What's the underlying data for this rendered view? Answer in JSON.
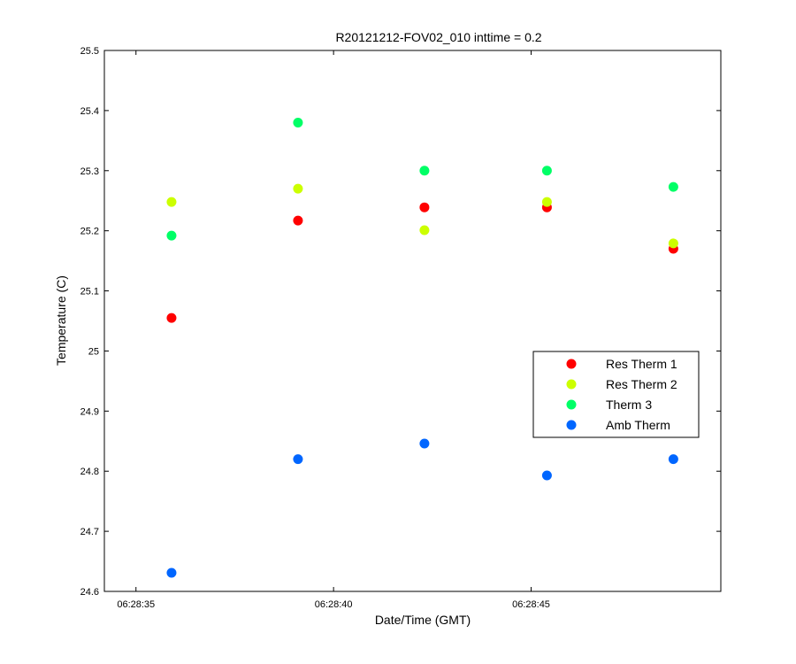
{
  "chart_data": {
    "type": "scatter",
    "title": "R20121212-FOV02_010 inttime = 0.2",
    "xlabel": "Date/Time (GMT)",
    "ylabel": "Temperature (C)",
    "x_axis": {
      "type": "time",
      "range": [
        "06:28:34.2",
        "06:28:49.8"
      ],
      "ticks": [
        "06:28:35",
        "06:28:40",
        "06:28:45"
      ]
    },
    "ylim": [
      24.6,
      25.5
    ],
    "yticks": [
      "24.6",
      "24.7",
      "24.8",
      "24.9",
      "25",
      "25.1",
      "25.2",
      "25.3",
      "25.4",
      "25.5"
    ],
    "x": [
      "06:28:35.9",
      "06:28:39.1",
      "06:28:42.3",
      "06:28:45.4",
      "06:28:48.6"
    ],
    "series": [
      {
        "name": "Res Therm 1",
        "color": "#ff0000",
        "values": [
          25.055,
          25.217,
          25.239,
          25.239,
          25.17
        ]
      },
      {
        "name": "Res Therm 2",
        "color": "#ccff00",
        "values": [
          25.248,
          25.27,
          25.201,
          25.248,
          25.179
        ]
      },
      {
        "name": "Therm 3",
        "color": "#00ff66",
        "values": [
          25.192,
          25.38,
          25.3,
          25.3,
          25.273
        ]
      },
      {
        "name": "Amb Therm",
        "color": "#0066ff",
        "values": [
          24.631,
          24.82,
          24.846,
          24.793,
          24.82
        ]
      }
    ],
    "legend": "right",
    "grid": false
  }
}
